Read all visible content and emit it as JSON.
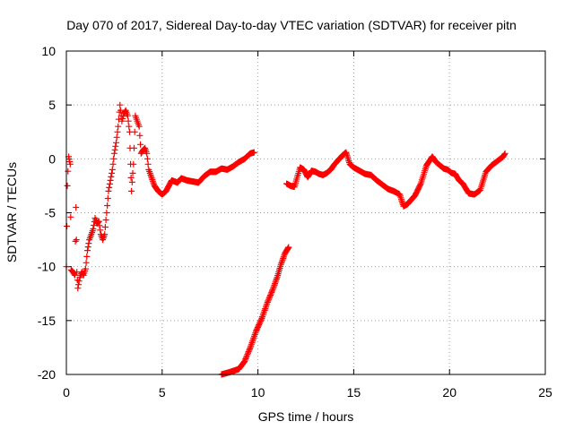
{
  "chart_data": {
    "type": "scatter",
    "title": "Day 070 of 2017, Sidereal Day-to-day VTEC variation (SDTVAR) for receiver pitn",
    "xlabel": "GPS time / hours",
    "ylabel": "SDTVAR / TECUs",
    "xlim": [
      0,
      25
    ],
    "ylim": [
      -20,
      10
    ],
    "xticks": [
      "0",
      "5",
      "10",
      "15",
      "20",
      "25"
    ],
    "yticks": [
      "-20",
      "-15",
      "-10",
      "-5",
      "0",
      "5",
      "10"
    ],
    "grid": true,
    "marker": "plus",
    "color": "#ff0000",
    "series": [
      {
        "name": "SDTVAR",
        "segments": [
          [
            [
              0.0,
              -10.0
            ],
            [
              0.05,
              -2.5
            ],
            [
              0.12,
              0.2
            ],
            [
              0.2,
              -0.5
            ],
            [
              0.25,
              -10.3
            ],
            [
              0.35,
              -10.5
            ],
            [
              0.45,
              -10.8
            ],
            [
              0.5,
              -4.5
            ],
            [
              0.55,
              -10.5
            ],
            [
              0.6,
              -12.0
            ],
            [
              0.7,
              -11.0
            ],
            [
              0.8,
              -10.5
            ],
            [
              0.9,
              -10.8
            ],
            [
              1.0,
              -10.2
            ],
            [
              1.1,
              -8.5
            ],
            [
              1.2,
              -7.5
            ],
            [
              1.3,
              -7.0
            ],
            [
              1.4,
              -6.5
            ],
            [
              1.5,
              -5.5
            ],
            [
              1.6,
              -6.0
            ],
            [
              1.7,
              -5.8
            ],
            [
              1.8,
              -7.0
            ],
            [
              1.9,
              -7.5
            ],
            [
              2.0,
              -7.0
            ],
            [
              2.1,
              -5.0
            ],
            [
              2.2,
              -3.0
            ],
            [
              2.3,
              -2.0
            ],
            [
              2.4,
              -1.0
            ],
            [
              2.5,
              0.5
            ],
            [
              2.6,
              1.5
            ],
            [
              2.7,
              3.0
            ],
            [
              2.8,
              5.0
            ],
            [
              2.9,
              3.5
            ],
            [
              3.0,
              4.2
            ],
            [
              3.1,
              4.5
            ],
            [
              3.2,
              4.0
            ],
            [
              3.3,
              2.5
            ],
            [
              3.35,
              -0.5
            ],
            [
              3.4,
              -3.0
            ],
            [
              3.5,
              -0.5
            ],
            [
              3.6,
              4.0
            ],
            [
              3.7,
              3.5
            ],
            [
              3.8,
              3.0
            ],
            [
              3.9,
              0.5
            ],
            [
              4.0,
              0.8
            ],
            [
              4.1,
              1.0
            ],
            [
              4.2,
              0.5
            ],
            [
              4.3,
              -1.0
            ],
            [
              4.4,
              -1.5
            ],
            [
              4.6,
              -2.5
            ],
            [
              4.8,
              -3.0
            ],
            [
              5.0,
              -3.3
            ],
            [
              5.2,
              -3.0
            ],
            [
              5.5,
              -2.0
            ],
            [
              5.8,
              -2.2
            ],
            [
              6.0,
              -1.8
            ],
            [
              6.3,
              -2.0
            ],
            [
              6.6,
              -2.1
            ],
            [
              6.9,
              -2.2
            ],
            [
              7.2,
              -1.6
            ],
            [
              7.5,
              -1.2
            ],
            [
              7.8,
              -1.2
            ],
            [
              8.1,
              -0.9
            ],
            [
              8.4,
              -1.0
            ],
            [
              8.7,
              -0.7
            ],
            [
              9.0,
              -0.3
            ],
            [
              9.3,
              0.0
            ],
            [
              9.6,
              0.5
            ],
            [
              9.8,
              0.6
            ]
          ],
          [
            [
              8.1,
              -20.0
            ],
            [
              8.5,
              -19.8
            ],
            [
              9.0,
              -19.5
            ],
            [
              9.3,
              -18.8
            ],
            [
              9.6,
              -17.5
            ],
            [
              9.9,
              -16.0
            ],
            [
              10.2,
              -14.8
            ],
            [
              10.5,
              -13.3
            ],
            [
              10.8,
              -12.0
            ],
            [
              11.0,
              -11.0
            ],
            [
              11.2,
              -9.8
            ],
            [
              11.4,
              -8.8
            ],
            [
              11.6,
              -8.2
            ]
          ],
          [
            [
              11.5,
              -2.3
            ],
            [
              11.7,
              -2.5
            ],
            [
              11.9,
              -2.6
            ],
            [
              12.2,
              -0.8
            ],
            [
              12.4,
              -1.0
            ],
            [
              12.6,
              -1.7
            ],
            [
              12.8,
              -1.1
            ],
            [
              13.0,
              -1.2
            ],
            [
              13.2,
              -1.4
            ],
            [
              13.4,
              -1.5
            ],
            [
              13.6,
              -1.3
            ],
            [
              13.8,
              -1.0
            ],
            [
              14.0,
              -0.5
            ],
            [
              14.2,
              -0.1
            ],
            [
              14.4,
              0.3
            ],
            [
              14.6,
              0.6
            ],
            [
              14.8,
              -0.5
            ],
            [
              15.0,
              -0.8
            ],
            [
              15.3,
              -1.1
            ],
            [
              15.6,
              -1.4
            ],
            [
              15.9,
              -1.5
            ],
            [
              16.2,
              -2.0
            ],
            [
              16.5,
              -2.4
            ],
            [
              16.8,
              -2.8
            ],
            [
              17.1,
              -3.0
            ],
            [
              17.4,
              -3.3
            ],
            [
              17.6,
              -4.4
            ],
            [
              17.8,
              -4.2
            ],
            [
              18.0,
              -3.8
            ],
            [
              18.2,
              -3.4
            ],
            [
              18.5,
              -2.3
            ],
            [
              18.8,
              -0.6
            ],
            [
              19.1,
              0.2
            ],
            [
              19.3,
              -0.3
            ],
            [
              19.5,
              -0.6
            ],
            [
              19.7,
              -0.9
            ],
            [
              19.9,
              -1.0
            ],
            [
              20.1,
              -1.3
            ],
            [
              20.3,
              -1.4
            ],
            [
              20.5,
              -2.0
            ],
            [
              20.7,
              -2.3
            ],
            [
              21.0,
              -3.2
            ],
            [
              21.3,
              -3.3
            ],
            [
              21.6,
              -2.9
            ],
            [
              21.9,
              -1.2
            ],
            [
              22.2,
              -0.6
            ],
            [
              22.5,
              -0.2
            ],
            [
              22.8,
              0.2
            ],
            [
              22.9,
              0.5
            ]
          ]
        ]
      }
    ]
  }
}
